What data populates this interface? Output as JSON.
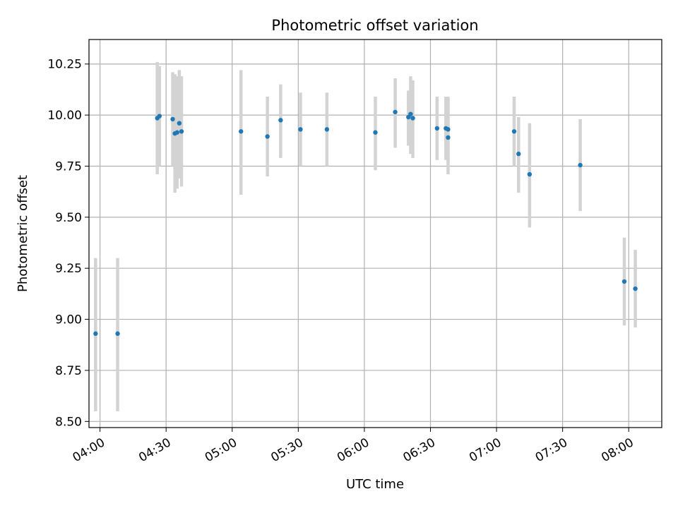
{
  "chart_data": {
    "type": "scatter",
    "title": "Photometric offset variation",
    "xlabel": "UTC time",
    "ylabel": "Photometric offset",
    "x_unit": "UTC time (HH:MM)",
    "xlim": [
      "03:55",
      "08:15"
    ],
    "ylim": [
      8.47,
      10.37
    ],
    "xticks": [
      "04:00",
      "04:30",
      "05:00",
      "05:30",
      "06:00",
      "06:30",
      "07:00",
      "07:30",
      "08:00"
    ],
    "yticks": [
      8.5,
      8.75,
      9.0,
      9.25,
      9.5,
      9.75,
      10.0,
      10.25
    ],
    "ytick_labels": [
      "8.50",
      "8.75",
      "9.00",
      "9.25",
      "9.50",
      "9.75",
      "10.00",
      "10.25"
    ],
    "grid": true,
    "colors": {
      "points": "#1f77b4",
      "errorbars": "#d3d3d3",
      "grid": "#b0b0b0"
    },
    "series": [
      {
        "points": [
          {
            "t": "03:58",
            "y": 8.93,
            "lo": 8.55,
            "hi": 9.3
          },
          {
            "t": "04:08",
            "y": 8.93,
            "lo": 8.55,
            "hi": 9.3
          },
          {
            "t": "04:26",
            "y": 9.985,
            "lo": 9.71,
            "hi": 10.26
          },
          {
            "t": "04:27",
            "y": 9.995,
            "lo": 9.75,
            "hi": 10.24
          },
          {
            "t": "04:33",
            "y": 9.98,
            "lo": 9.75,
            "hi": 10.21
          },
          {
            "t": "04:34",
            "y": 9.91,
            "lo": 9.62,
            "hi": 10.2
          },
          {
            "t": "04:35",
            "y": 9.915,
            "lo": 9.64,
            "hi": 10.19
          },
          {
            "t": "04:36",
            "y": 9.96,
            "lo": 9.69,
            "hi": 10.22
          },
          {
            "t": "04:37",
            "y": 9.92,
            "lo": 9.65,
            "hi": 10.19
          },
          {
            "t": "05:04",
            "y": 9.92,
            "lo": 9.61,
            "hi": 10.22
          },
          {
            "t": "05:16",
            "y": 9.895,
            "lo": 9.7,
            "hi": 10.09
          },
          {
            "t": "05:22",
            "y": 9.975,
            "lo": 9.79,
            "hi": 10.15
          },
          {
            "t": "05:31",
            "y": 9.93,
            "lo": 9.75,
            "hi": 10.11
          },
          {
            "t": "05:43",
            "y": 9.93,
            "lo": 9.75,
            "hi": 10.11
          },
          {
            "t": "06:05",
            "y": 9.915,
            "lo": 9.73,
            "hi": 10.09
          },
          {
            "t": "06:14",
            "y": 10.015,
            "lo": 9.84,
            "hi": 10.18
          },
          {
            "t": "06:20",
            "y": 9.99,
            "lo": 9.85,
            "hi": 10.12
          },
          {
            "t": "06:21",
            "y": 10.005,
            "lo": 9.81,
            "hi": 10.19
          },
          {
            "t": "06:22",
            "y": 9.985,
            "lo": 9.79,
            "hi": 10.17
          },
          {
            "t": "06:33",
            "y": 9.935,
            "lo": 9.78,
            "hi": 10.09
          },
          {
            "t": "06:37",
            "y": 9.935,
            "lo": 9.78,
            "hi": 10.09
          },
          {
            "t": "06:38",
            "y": 9.89,
            "lo": 9.71,
            "hi": 10.08
          },
          {
            "t": "06:38",
            "y": 9.93,
            "lo": 9.77,
            "hi": 10.09
          },
          {
            "t": "07:08",
            "y": 9.92,
            "lo": 9.75,
            "hi": 10.09
          },
          {
            "t": "07:10",
            "y": 9.81,
            "lo": 9.62,
            "hi": 9.99
          },
          {
            "t": "07:15",
            "y": 9.71,
            "lo": 9.45,
            "hi": 9.96
          },
          {
            "t": "07:38",
            "y": 9.755,
            "lo": 9.53,
            "hi": 9.98
          },
          {
            "t": "07:58",
            "y": 9.185,
            "lo": 8.97,
            "hi": 9.4
          },
          {
            "t": "08:03",
            "y": 9.15,
            "lo": 8.96,
            "hi": 9.34
          }
        ]
      }
    ]
  }
}
